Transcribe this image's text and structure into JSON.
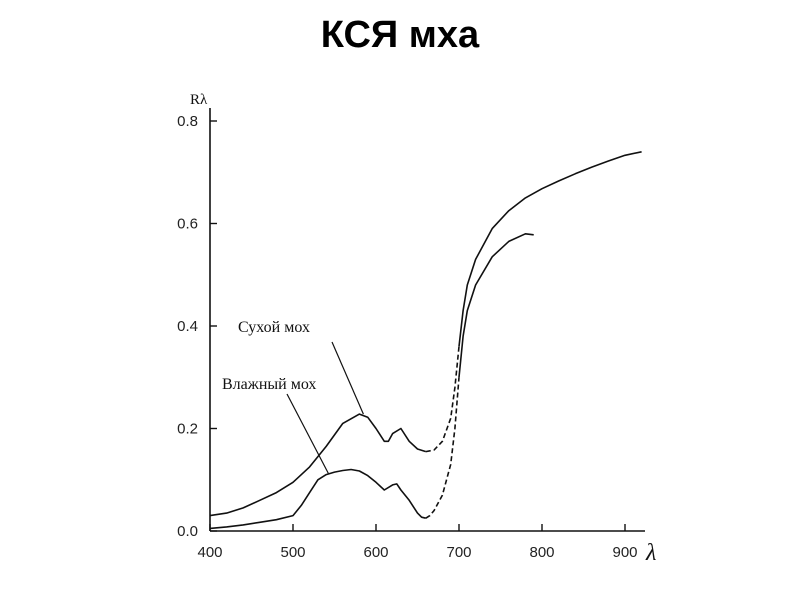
{
  "title": "КСЯ мха",
  "chart_data": {
    "type": "line",
    "title": "КСЯ мха",
    "xlabel": "λ",
    "ylabel": "Rλ",
    "xlim": [
      400,
      930
    ],
    "ylim": [
      0,
      0.8
    ],
    "x_ticks": [
      400,
      500,
      600,
      700,
      800,
      900
    ],
    "y_ticks": [
      "0.0",
      "0.2",
      "0.4",
      "0.6",
      "0.8"
    ],
    "grid": false,
    "series": [
      {
        "name": "Сухой мох",
        "dashed_range": [
          660,
          700
        ],
        "x": [
          400,
          420,
          440,
          460,
          480,
          500,
          520,
          540,
          560,
          580,
          590,
          600,
          610,
          615,
          620,
          630,
          640,
          650,
          660,
          670,
          680,
          690,
          695,
          700,
          705,
          710,
          720,
          740,
          760,
          780,
          800,
          820,
          840,
          860,
          880,
          900,
          920
        ],
        "y": [
          0.03,
          0.035,
          0.045,
          0.06,
          0.075,
          0.095,
          0.125,
          0.165,
          0.21,
          0.228,
          0.222,
          0.2,
          0.175,
          0.175,
          0.19,
          0.2,
          0.175,
          0.16,
          0.155,
          0.158,
          0.175,
          0.22,
          0.28,
          0.36,
          0.43,
          0.48,
          0.53,
          0.59,
          0.625,
          0.65,
          0.668,
          0.683,
          0.697,
          0.71,
          0.722,
          0.733,
          0.74
        ]
      },
      {
        "name": "Влажный мох",
        "dashed_range": [
          660,
          700
        ],
        "x": [
          400,
          420,
          440,
          460,
          480,
          500,
          510,
          520,
          530,
          540,
          550,
          560,
          570,
          580,
          590,
          600,
          610,
          620,
          625,
          630,
          640,
          650,
          655,
          660,
          665,
          670,
          680,
          690,
          695,
          700,
          705,
          710,
          720,
          740,
          760,
          780,
          790
        ],
        "y": [
          0.005,
          0.008,
          0.012,
          0.017,
          0.022,
          0.03,
          0.05,
          0.075,
          0.1,
          0.11,
          0.115,
          0.118,
          0.12,
          0.117,
          0.108,
          0.095,
          0.08,
          0.09,
          0.092,
          0.08,
          0.06,
          0.035,
          0.027,
          0.025,
          0.03,
          0.04,
          0.07,
          0.13,
          0.2,
          0.3,
          0.38,
          0.43,
          0.48,
          0.535,
          0.565,
          0.58,
          0.578
        ]
      }
    ],
    "annotations": [
      {
        "text": "Сухой мох",
        "series": "Сухой мох",
        "point_x": 580
      },
      {
        "text": "Влажный мох",
        "series": "Влажный мох",
        "point_x": 545
      }
    ]
  }
}
